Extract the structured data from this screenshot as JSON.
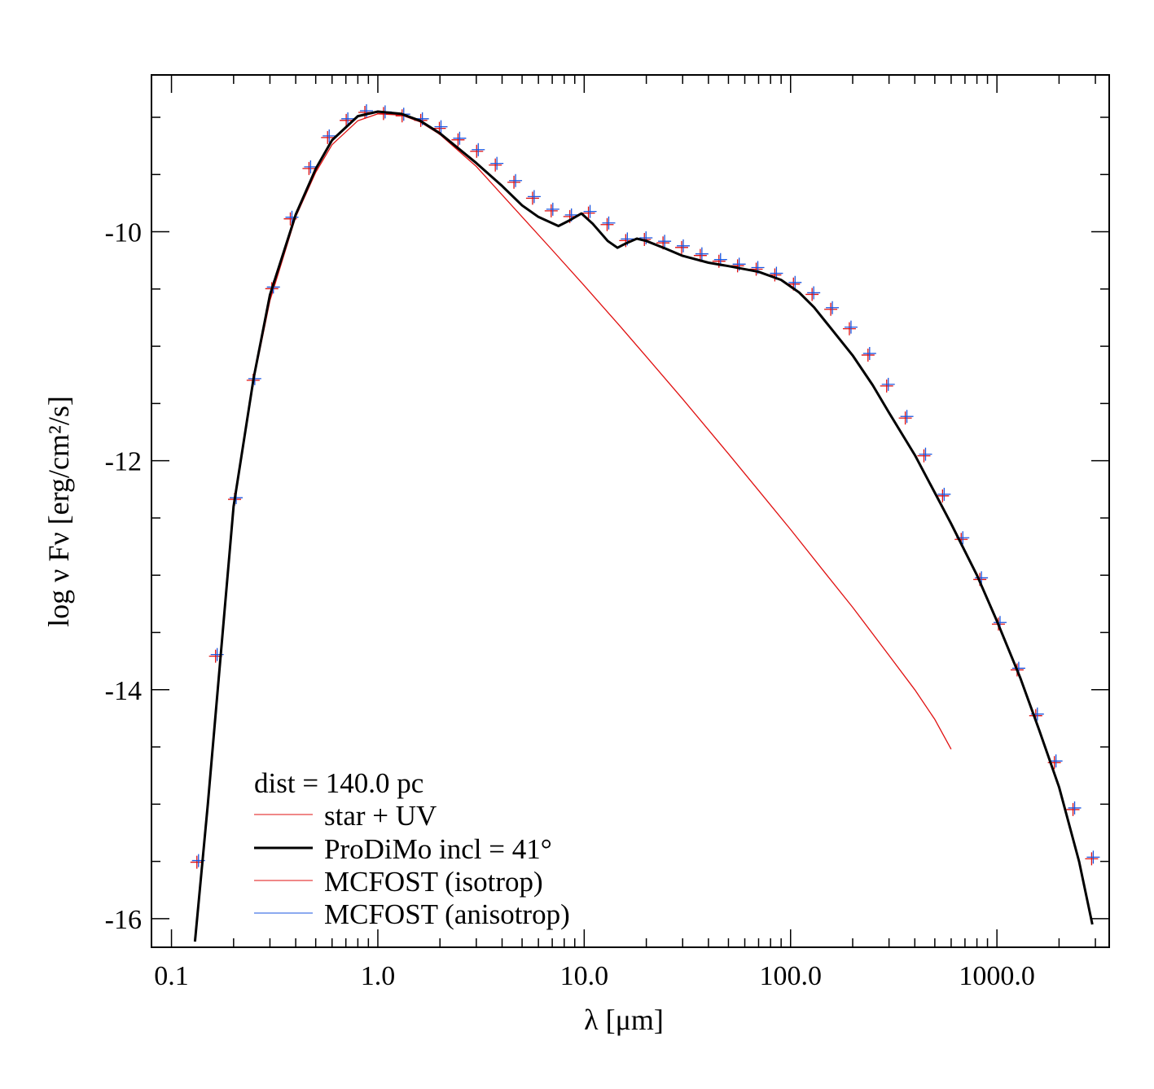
{
  "chart_data": {
    "type": "line",
    "title": "",
    "xlabel": "λ [μm]",
    "ylabel": "log ν Fν [erg/cm²/s]",
    "xscale": "log",
    "xlim": [
      0.08,
      3500
    ],
    "ylim": [
      -16.25,
      -8.63
    ],
    "x_ticks": [
      "0.1",
      "1.0",
      "10.0",
      "100.0",
      "1000.0"
    ],
    "y_ticks": [
      "-10",
      "-12",
      "-14",
      "-16"
    ],
    "legend_header": "dist = 140.0 pc",
    "legend_position": "bottom-left",
    "colors": {
      "star": "#e01010",
      "prodimo": "#000000",
      "iso": "#e01010",
      "aniso": "#1a55e0"
    },
    "series": [
      {
        "name": "star + UV",
        "style": "thin-line",
        "x": [
          0.13,
          0.15,
          0.2,
          0.25,
          0.3,
          0.4,
          0.5,
          0.6,
          0.8,
          1.0,
          1.3,
          1.6,
          2.0,
          3.0,
          5.0,
          7.0,
          10,
          15,
          20,
          30,
          50,
          70,
          100,
          150,
          200,
          300,
          400,
          500,
          600
        ],
        "y": [
          -16.2,
          -15.0,
          -12.4,
          -11.3,
          -10.6,
          -9.87,
          -9.48,
          -9.24,
          -9.03,
          -8.97,
          -8.98,
          -9.04,
          -9.15,
          -9.43,
          -9.87,
          -10.16,
          -10.47,
          -10.83,
          -11.09,
          -11.46,
          -11.94,
          -12.26,
          -12.6,
          -13.0,
          -13.28,
          -13.7,
          -14.0,
          -14.26,
          -14.52
        ]
      },
      {
        "name": "ProDiMo incl = 41°",
        "style": "thick-line",
        "x": [
          0.13,
          0.15,
          0.2,
          0.25,
          0.3,
          0.4,
          0.5,
          0.6,
          0.8,
          1.0,
          1.3,
          1.6,
          2.0,
          3.0,
          4.0,
          5.0,
          6.0,
          7.5,
          8.5,
          9.7,
          11,
          13,
          14.5,
          16,
          18,
          20,
          25,
          30,
          40,
          50,
          70,
          90,
          110,
          130,
          150,
          200,
          250,
          300,
          400,
          500,
          600,
          800,
          1000,
          1300,
          1600,
          2000,
          2500,
          2900
        ],
        "y": [
          -16.2,
          -15.0,
          -12.4,
          -11.28,
          -10.55,
          -9.85,
          -9.45,
          -9.2,
          -8.99,
          -8.95,
          -8.97,
          -9.03,
          -9.14,
          -9.4,
          -9.6,
          -9.77,
          -9.87,
          -9.95,
          -9.9,
          -9.84,
          -9.93,
          -10.08,
          -10.14,
          -10.1,
          -10.06,
          -10.08,
          -10.15,
          -10.21,
          -10.27,
          -10.3,
          -10.35,
          -10.42,
          -10.53,
          -10.66,
          -10.8,
          -11.08,
          -11.34,
          -11.58,
          -11.95,
          -12.28,
          -12.55,
          -13.0,
          -13.4,
          -13.9,
          -14.35,
          -14.85,
          -15.5,
          -16.05
        ]
      },
      {
        "name": "MCFOST (isotrop)",
        "style": "plus-markers",
        "x": [
          0.134,
          0.165,
          0.204,
          0.251,
          0.309,
          0.38,
          0.468,
          0.576,
          0.709,
          0.873,
          1.075,
          1.323,
          1.629,
          2.005,
          2.469,
          3.039,
          3.742,
          4.607,
          5.671,
          6.982,
          8.596,
          10.58,
          13.03,
          16.04,
          19.75,
          24.31,
          29.93,
          36.85,
          45.37,
          55.85,
          68.76,
          84.65,
          104.2,
          128.3,
          158,
          194.5,
          239.4,
          294.8,
          362.9,
          446.8,
          550,
          677.2,
          833.7,
          1026,
          1264,
          1556,
          1915,
          2358,
          2903
        ],
        "y": [
          -15.5,
          -13.7,
          -12.33,
          -11.29,
          -10.49,
          -9.88,
          -9.44,
          -9.17,
          -9.02,
          -8.95,
          -8.96,
          -8.98,
          -9.02,
          -9.09,
          -9.19,
          -9.29,
          -9.41,
          -9.56,
          -9.7,
          -9.81,
          -9.86,
          -9.83,
          -9.93,
          -10.07,
          -10.06,
          -10.09,
          -10.13,
          -10.2,
          -10.25,
          -10.29,
          -10.32,
          -10.37,
          -10.45,
          -10.54,
          -10.67,
          -10.84,
          -11.07,
          -11.34,
          -11.62,
          -11.95,
          -12.3,
          -12.68,
          -13.03,
          -13.42,
          -13.82,
          -14.22,
          -14.63,
          -15.04,
          -15.47
        ]
      },
      {
        "name": "MCFOST (anisotrop)",
        "style": "plus-markers",
        "x": [
          0.134,
          0.165,
          0.204,
          0.251,
          0.309,
          0.38,
          0.468,
          0.576,
          0.709,
          0.873,
          1.075,
          1.323,
          1.629,
          2.005,
          2.469,
          3.039,
          3.742,
          4.607,
          5.671,
          6.982,
          8.596,
          10.58,
          13.03,
          16.04,
          19.75,
          24.31,
          29.93,
          36.85,
          45.37,
          55.85,
          68.76,
          84.65,
          104.2,
          128.3,
          158,
          194.5,
          239.4,
          294.8,
          362.9,
          446.8,
          550,
          677.2,
          833.7,
          1026,
          1264,
          1556,
          1915,
          2358,
          2903
        ],
        "y": [
          -15.5,
          -13.7,
          -12.33,
          -11.29,
          -10.49,
          -9.88,
          -9.44,
          -9.17,
          -9.02,
          -8.95,
          -8.96,
          -8.98,
          -9.02,
          -9.09,
          -9.19,
          -9.29,
          -9.41,
          -9.56,
          -9.7,
          -9.81,
          -9.86,
          -9.83,
          -9.93,
          -10.07,
          -10.06,
          -10.09,
          -10.13,
          -10.2,
          -10.25,
          -10.29,
          -10.32,
          -10.37,
          -10.45,
          -10.54,
          -10.67,
          -10.84,
          -11.07,
          -11.34,
          -11.62,
          -11.95,
          -12.3,
          -12.68,
          -13.03,
          -13.42,
          -13.82,
          -14.22,
          -14.63,
          -15.04,
          -15.47
        ]
      }
    ]
  }
}
